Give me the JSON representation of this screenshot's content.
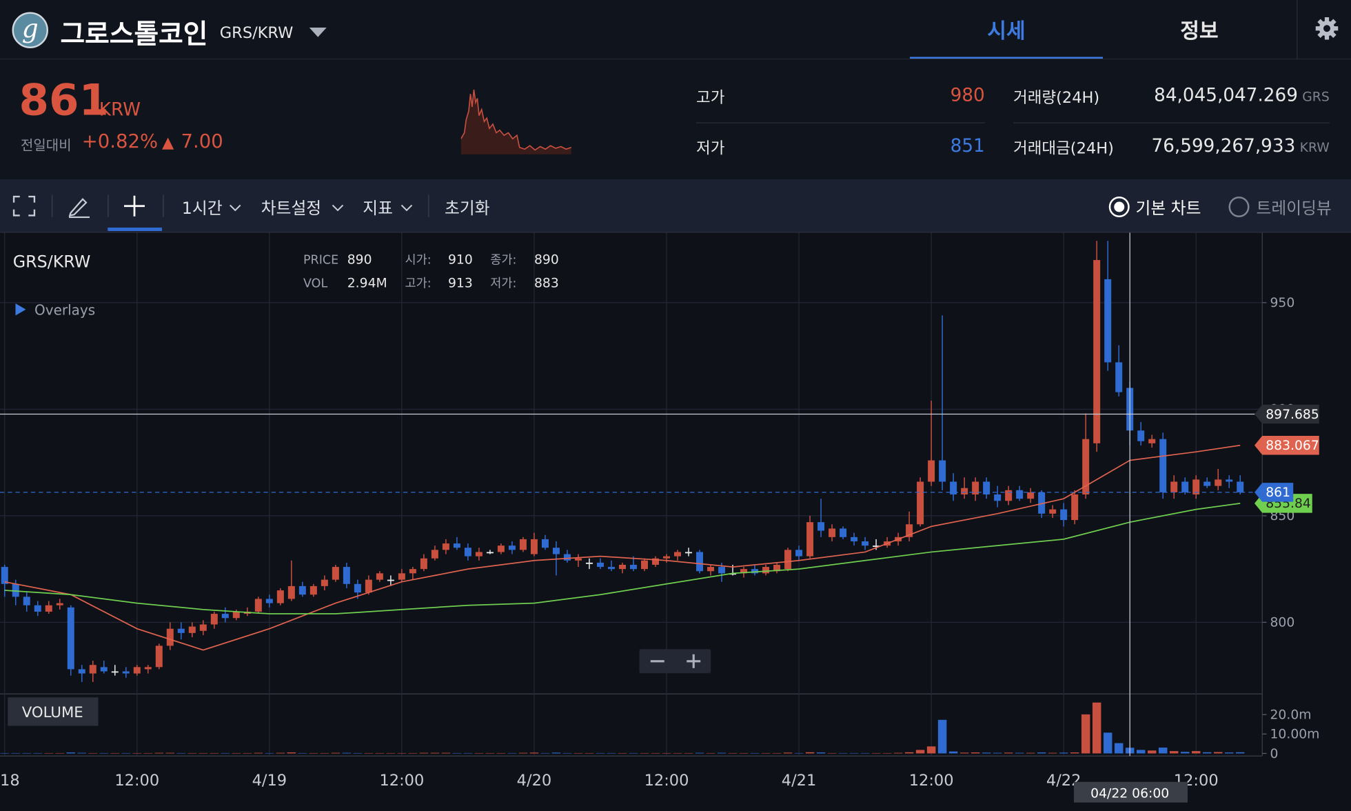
{
  "header": {
    "logo_letter": "g",
    "coin_name": "그로스톨코인",
    "pair": "GRS/KRW",
    "tabs": [
      "시세",
      "정보"
    ]
  },
  "ticker": {
    "price": 861,
    "unit": "KRW",
    "change_label": "전일대비",
    "change_pct": "+0.82%",
    "change_abs": "7.00",
    "stats": [
      {
        "label": "고가",
        "value": 980
      },
      {
        "label": "저가",
        "value": 851
      }
    ],
    "volume": [
      {
        "label": "거래량(24H)",
        "value": "84,045,047.269",
        "unit": "GRS"
      },
      {
        "label": "거래대금(24H)",
        "value": "76,599,267,933",
        "unit": "KRW"
      }
    ]
  },
  "toolbar": {
    "items": [
      "1시간",
      "차트설정",
      "지표",
      "초기화"
    ],
    "chart_modes": [
      "기본 차트",
      "트레이딩뷰"
    ]
  },
  "chart_data": {
    "type": "candlestick",
    "title": "GRS/KRW",
    "overlays_label": "Overlays",
    "volume_label": "VOLUME",
    "readout": [
      {
        "label": "PRICE",
        "value": 890
      },
      {
        "label": "VOL",
        "value": "2.94M"
      },
      {
        "label": "시가:",
        "value": 910
      },
      {
        "label": "고가:",
        "value": 913
      },
      {
        "label": "종가:",
        "value": 890
      },
      {
        "label": "저가:",
        "value": 883
      }
    ],
    "up_color": "#c9503f",
    "down_color": "#2f6bd0",
    "doji_color": "#e8e8e8",
    "xlim": [
      -0.42,
      114
    ],
    "xticks": [
      {
        "value": 0,
        "label": "18"
      },
      {
        "value": 12,
        "label": "12:00"
      },
      {
        "value": 24,
        "label": "4/19"
      },
      {
        "value": 36,
        "label": "12:00"
      },
      {
        "value": 48,
        "label": "4/20"
      },
      {
        "value": 60,
        "label": "12:00"
      },
      {
        "value": 72,
        "label": "4/21"
      },
      {
        "value": 84,
        "label": "12:00"
      },
      {
        "value": 96,
        "label": "4/22"
      },
      {
        "value": 108,
        "label": "12:00"
      }
    ],
    "ylim": [
      766.4,
      982.8
    ],
    "yticks": [
      800,
      850,
      900,
      950
    ],
    "x": [
      0,
      1,
      2,
      3,
      4,
      5,
      6,
      7,
      8,
      9,
      10,
      11,
      12,
      13,
      14,
      15,
      16,
      17,
      18,
      19,
      20,
      21,
      22,
      23,
      24,
      25,
      26,
      27,
      28,
      29,
      30,
      31,
      32,
      33,
      34,
      35,
      36,
      37,
      38,
      39,
      40,
      41,
      42,
      43,
      44,
      45,
      46,
      47,
      48,
      49,
      50,
      51,
      52,
      53,
      54,
      55,
      56,
      57,
      58,
      59,
      60,
      61,
      62,
      63,
      64,
      65,
      66,
      67,
      68,
      69,
      70,
      71,
      72,
      73,
      74,
      75,
      76,
      77,
      78,
      79,
      80,
      81,
      82,
      83,
      84,
      85,
      86,
      87,
      88,
      89,
      90,
      91,
      92,
      93,
      94,
      95,
      96,
      97,
      98,
      99,
      100,
      101,
      102,
      103,
      104,
      105,
      106,
      107,
      108,
      109,
      110,
      111,
      112
    ],
    "ohlc": [
      [
        826,
        827,
        812,
        818
      ],
      [
        818,
        820,
        808,
        812
      ],
      [
        812,
        814,
        805,
        808
      ],
      [
        808,
        810,
        803,
        805
      ],
      [
        805,
        810,
        804,
        808
      ],
      [
        808,
        811,
        806,
        809
      ],
      [
        807,
        808,
        775,
        778
      ],
      [
        778,
        780,
        772,
        776
      ],
      [
        776,
        782,
        772,
        780
      ],
      [
        779,
        782,
        776,
        777
      ],
      [
        777,
        780,
        775,
        777
      ],
      [
        777,
        779,
        774,
        776
      ],
      [
        776,
        780,
        775,
        779
      ],
      [
        778,
        780,
        776,
        779
      ],
      [
        779,
        790,
        778,
        789
      ],
      [
        789,
        800,
        787,
        797
      ],
      [
        797,
        800,
        792,
        795
      ],
      [
        795,
        800,
        793,
        798
      ],
      [
        796,
        801,
        794,
        799
      ],
      [
        799,
        805,
        797,
        804
      ],
      [
        804,
        807,
        800,
        802
      ],
      [
        802,
        806,
        801,
        805
      ],
      [
        804,
        807,
        803,
        805
      ],
      [
        805,
        812,
        804,
        811
      ],
      [
        811,
        813,
        807,
        809
      ],
      [
        809,
        816,
        808,
        815
      ],
      [
        811,
        829,
        810,
        817
      ],
      [
        817,
        819,
        812,
        813
      ],
      [
        813,
        818,
        812,
        817
      ],
      [
        817,
        822,
        815,
        820
      ],
      [
        820,
        827,
        819,
        826
      ],
      [
        826,
        828,
        816,
        818
      ],
      [
        818,
        820,
        811,
        814
      ],
      [
        814,
        822,
        813,
        820
      ],
      [
        820,
        824,
        819,
        823
      ],
      [
        820,
        822,
        817,
        820
      ],
      [
        820,
        825,
        819,
        823
      ],
      [
        823,
        826,
        820,
        825
      ],
      [
        825,
        832,
        824,
        830
      ],
      [
        830,
        836,
        829,
        834
      ],
      [
        834,
        839,
        832,
        837
      ],
      [
        837,
        840,
        834,
        835
      ],
      [
        835,
        837,
        829,
        831
      ],
      [
        831,
        835,
        829,
        833
      ],
      [
        833,
        834,
        832,
        833
      ],
      [
        833,
        837,
        832,
        836
      ],
      [
        836,
        838,
        832,
        834
      ],
      [
        834,
        840,
        833,
        839
      ],
      [
        832,
        842,
        831,
        839
      ],
      [
        839,
        841,
        834,
        835
      ],
      [
        835,
        838,
        822,
        832
      ],
      [
        832,
        834,
        828,
        829
      ],
      [
        829,
        832,
        826,
        830
      ],
      [
        828,
        830,
        825,
        828
      ],
      [
        828,
        830,
        825,
        826
      ],
      [
        826,
        829,
        824,
        825
      ],
      [
        825,
        828,
        823,
        827
      ],
      [
        827,
        831,
        824,
        825
      ],
      [
        825,
        830,
        824,
        829
      ],
      [
        827,
        831,
        826,
        830
      ],
      [
        830,
        832,
        828,
        831
      ],
      [
        831,
        834,
        829,
        833
      ],
      [
        833,
        835,
        831,
        833
      ],
      [
        833,
        834,
        823,
        824
      ],
      [
        824,
        827,
        822,
        826
      ],
      [
        826,
        828,
        819,
        823
      ],
      [
        823,
        827,
        822,
        823
      ],
      [
        823,
        826,
        821,
        825
      ],
      [
        825,
        827,
        822,
        823
      ],
      [
        823,
        827,
        822,
        826
      ],
      [
        824,
        828,
        823,
        827
      ],
      [
        825,
        835,
        824,
        834
      ],
      [
        834,
        836,
        829,
        831
      ],
      [
        831,
        850,
        830,
        847
      ],
      [
        847,
        858,
        840,
        843
      ],
      [
        840,
        846,
        838,
        844
      ],
      [
        844,
        845,
        839,
        840
      ],
      [
        840,
        842,
        836,
        838
      ],
      [
        838,
        840,
        834,
        836
      ],
      [
        836,
        839,
        834,
        836
      ],
      [
        836,
        840,
        835,
        838
      ],
      [
        838,
        842,
        836,
        840
      ],
      [
        840,
        852,
        838,
        846
      ],
      [
        846,
        868,
        845,
        866
      ],
      [
        866,
        904,
        864,
        876
      ],
      [
        876,
        944,
        862,
        866
      ],
      [
        866,
        870,
        857,
        860
      ],
      [
        860,
        868,
        858,
        863
      ],
      [
        860,
        868,
        857,
        866
      ],
      [
        866,
        868,
        858,
        860
      ],
      [
        860,
        864,
        854,
        857
      ],
      [
        857,
        864,
        855,
        862
      ],
      [
        862,
        864,
        857,
        858
      ],
      [
        858,
        863,
        856,
        861
      ],
      [
        861,
        862,
        849,
        851
      ],
      [
        851,
        855,
        849,
        853
      ],
      [
        853,
        856,
        845,
        848
      ],
      [
        848,
        862,
        846,
        860
      ],
      [
        860,
        898,
        858,
        886
      ],
      [
        884,
        979,
        880,
        970
      ],
      [
        961,
        979,
        918,
        922
      ],
      [
        922,
        930,
        906,
        908
      ],
      [
        910,
        913,
        883,
        890
      ],
      [
        890,
        894,
        883,
        885
      ],
      [
        884,
        888,
        882,
        886
      ],
      [
        886,
        889,
        858,
        861
      ],
      [
        861,
        869,
        858,
        866
      ],
      [
        866,
        868,
        860,
        861
      ],
      [
        860,
        869,
        858,
        867
      ],
      [
        866,
        868,
        863,
        864
      ],
      [
        864,
        872,
        862,
        867
      ],
      [
        867,
        869,
        863,
        866
      ],
      [
        866,
        869,
        860,
        861
      ]
    ],
    "volume": {
      "ylim": [
        0,
        29.3
      ],
      "yticks": [
        0,
        {
          "value": 10,
          "label": "10.00m"
        },
        {
          "value": 20,
          "label": "20.0m"
        }
      ],
      "values": [
        0.2,
        0.2,
        0.2,
        0.2,
        0.2,
        0.2,
        0.5,
        0.3,
        0.2,
        0.2,
        0.2,
        0.2,
        0.2,
        0.2,
        0.3,
        0.3,
        0.2,
        0.2,
        0.2,
        0.2,
        0.2,
        0.2,
        0.2,
        0.3,
        0.2,
        0.3,
        0.5,
        0.2,
        0.2,
        0.2,
        0.3,
        0.3,
        0.2,
        0.2,
        0.2,
        0.2,
        0.2,
        0.2,
        0.3,
        0.3,
        0.3,
        0.2,
        0.2,
        0.2,
        0.2,
        0.2,
        0.2,
        0.3,
        0.4,
        0.2,
        0.4,
        0.2,
        0.2,
        0.2,
        0.2,
        0.2,
        0.2,
        0.2,
        0.2,
        0.2,
        0.2,
        0.2,
        0.2,
        0.3,
        0.2,
        0.3,
        0.2,
        0.2,
        0.2,
        0.2,
        0.2,
        0.4,
        0.2,
        0.6,
        0.5,
        0.2,
        0.2,
        0.2,
        0.2,
        0.2,
        0.2,
        0.3,
        0.6,
        1.8,
        3.6,
        17.3,
        1.0,
        0.4,
        0.5,
        0.4,
        0.3,
        0.4,
        0.3,
        0.3,
        0.5,
        0.3,
        0.4,
        0.5,
        20.1,
        26.2,
        10.7,
        5.3,
        2.94,
        1.8,
        1.5,
        3.0,
        1.2,
        0.8,
        1.2,
        0.6,
        0.7,
        0.5,
        0.6
      ]
    },
    "series": [
      {
        "color": "#e0634f",
        "x": [
          0,
          6,
          12,
          18,
          24,
          30,
          36,
          42,
          48,
          54,
          60,
          66,
          72,
          78,
          84,
          90,
          96,
          102,
          108,
          112
        ],
        "values": [
          819,
          813,
          797,
          787,
          797,
          809,
          819,
          825,
          829,
          831,
          829,
          826,
          829,
          833,
          845,
          851,
          858,
          876,
          880,
          883.067
        ]
      },
      {
        "color": "#6fcf4f",
        "x": [
          0,
          6,
          12,
          18,
          24,
          30,
          36,
          42,
          48,
          54,
          60,
          66,
          72,
          78,
          84,
          90,
          96,
          102,
          108,
          112
        ],
        "values": [
          815,
          813,
          809,
          806,
          804,
          804,
          806,
          808,
          809,
          813,
          818,
          823,
          825,
          829,
          833,
          836,
          839,
          847,
          853,
          855.84
        ]
      }
    ],
    "current_price": 861,
    "current_color": "#2f6bd0",
    "crosshair": {
      "x": 102,
      "price": 897.685,
      "time_label": "04/22 06:00"
    }
  }
}
